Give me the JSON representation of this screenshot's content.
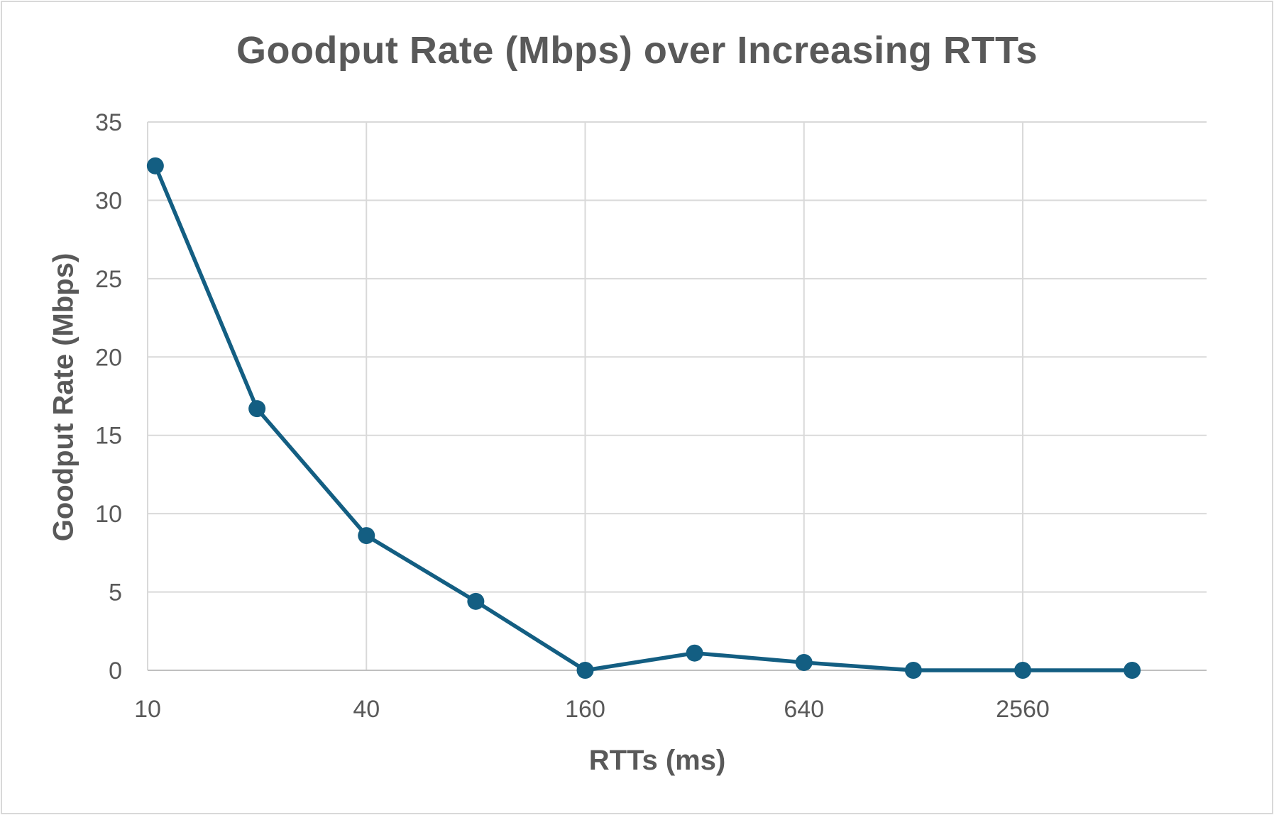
{
  "chart_data": {
    "type": "line",
    "title": "Goodput Rate (Mbps) over Increasing RTTs",
    "xlabel": "RTTs (ms)",
    "ylabel": "Goodput Rate (Mbps)",
    "x_scale": "log2",
    "xlim": [
      10,
      10240
    ],
    "ylim": [
      0,
      35
    ],
    "x_ticks": [
      10,
      40,
      160,
      640,
      2560
    ],
    "y_ticks": [
      0,
      5,
      10,
      15,
      20,
      25,
      30,
      35
    ],
    "grid": true,
    "legend": "none",
    "series": [
      {
        "color": "#135e82",
        "points": [
          {
            "x": 10.5,
            "y": 32.2
          },
          {
            "x": 20,
            "y": 16.7
          },
          {
            "x": 40,
            "y": 8.6
          },
          {
            "x": 80,
            "y": 4.4
          },
          {
            "x": 160,
            "y": 0.0
          },
          {
            "x": 320,
            "y": 1.1
          },
          {
            "x": 640,
            "y": 0.5
          },
          {
            "x": 1280,
            "y": 0.0
          },
          {
            "x": 2560,
            "y": 0.0
          },
          {
            "x": 5120,
            "y": 0.0
          }
        ]
      }
    ]
  },
  "colors": {
    "series_line": "#135e82",
    "gridline": "#d9d9d9",
    "axis_text": "#595959"
  }
}
